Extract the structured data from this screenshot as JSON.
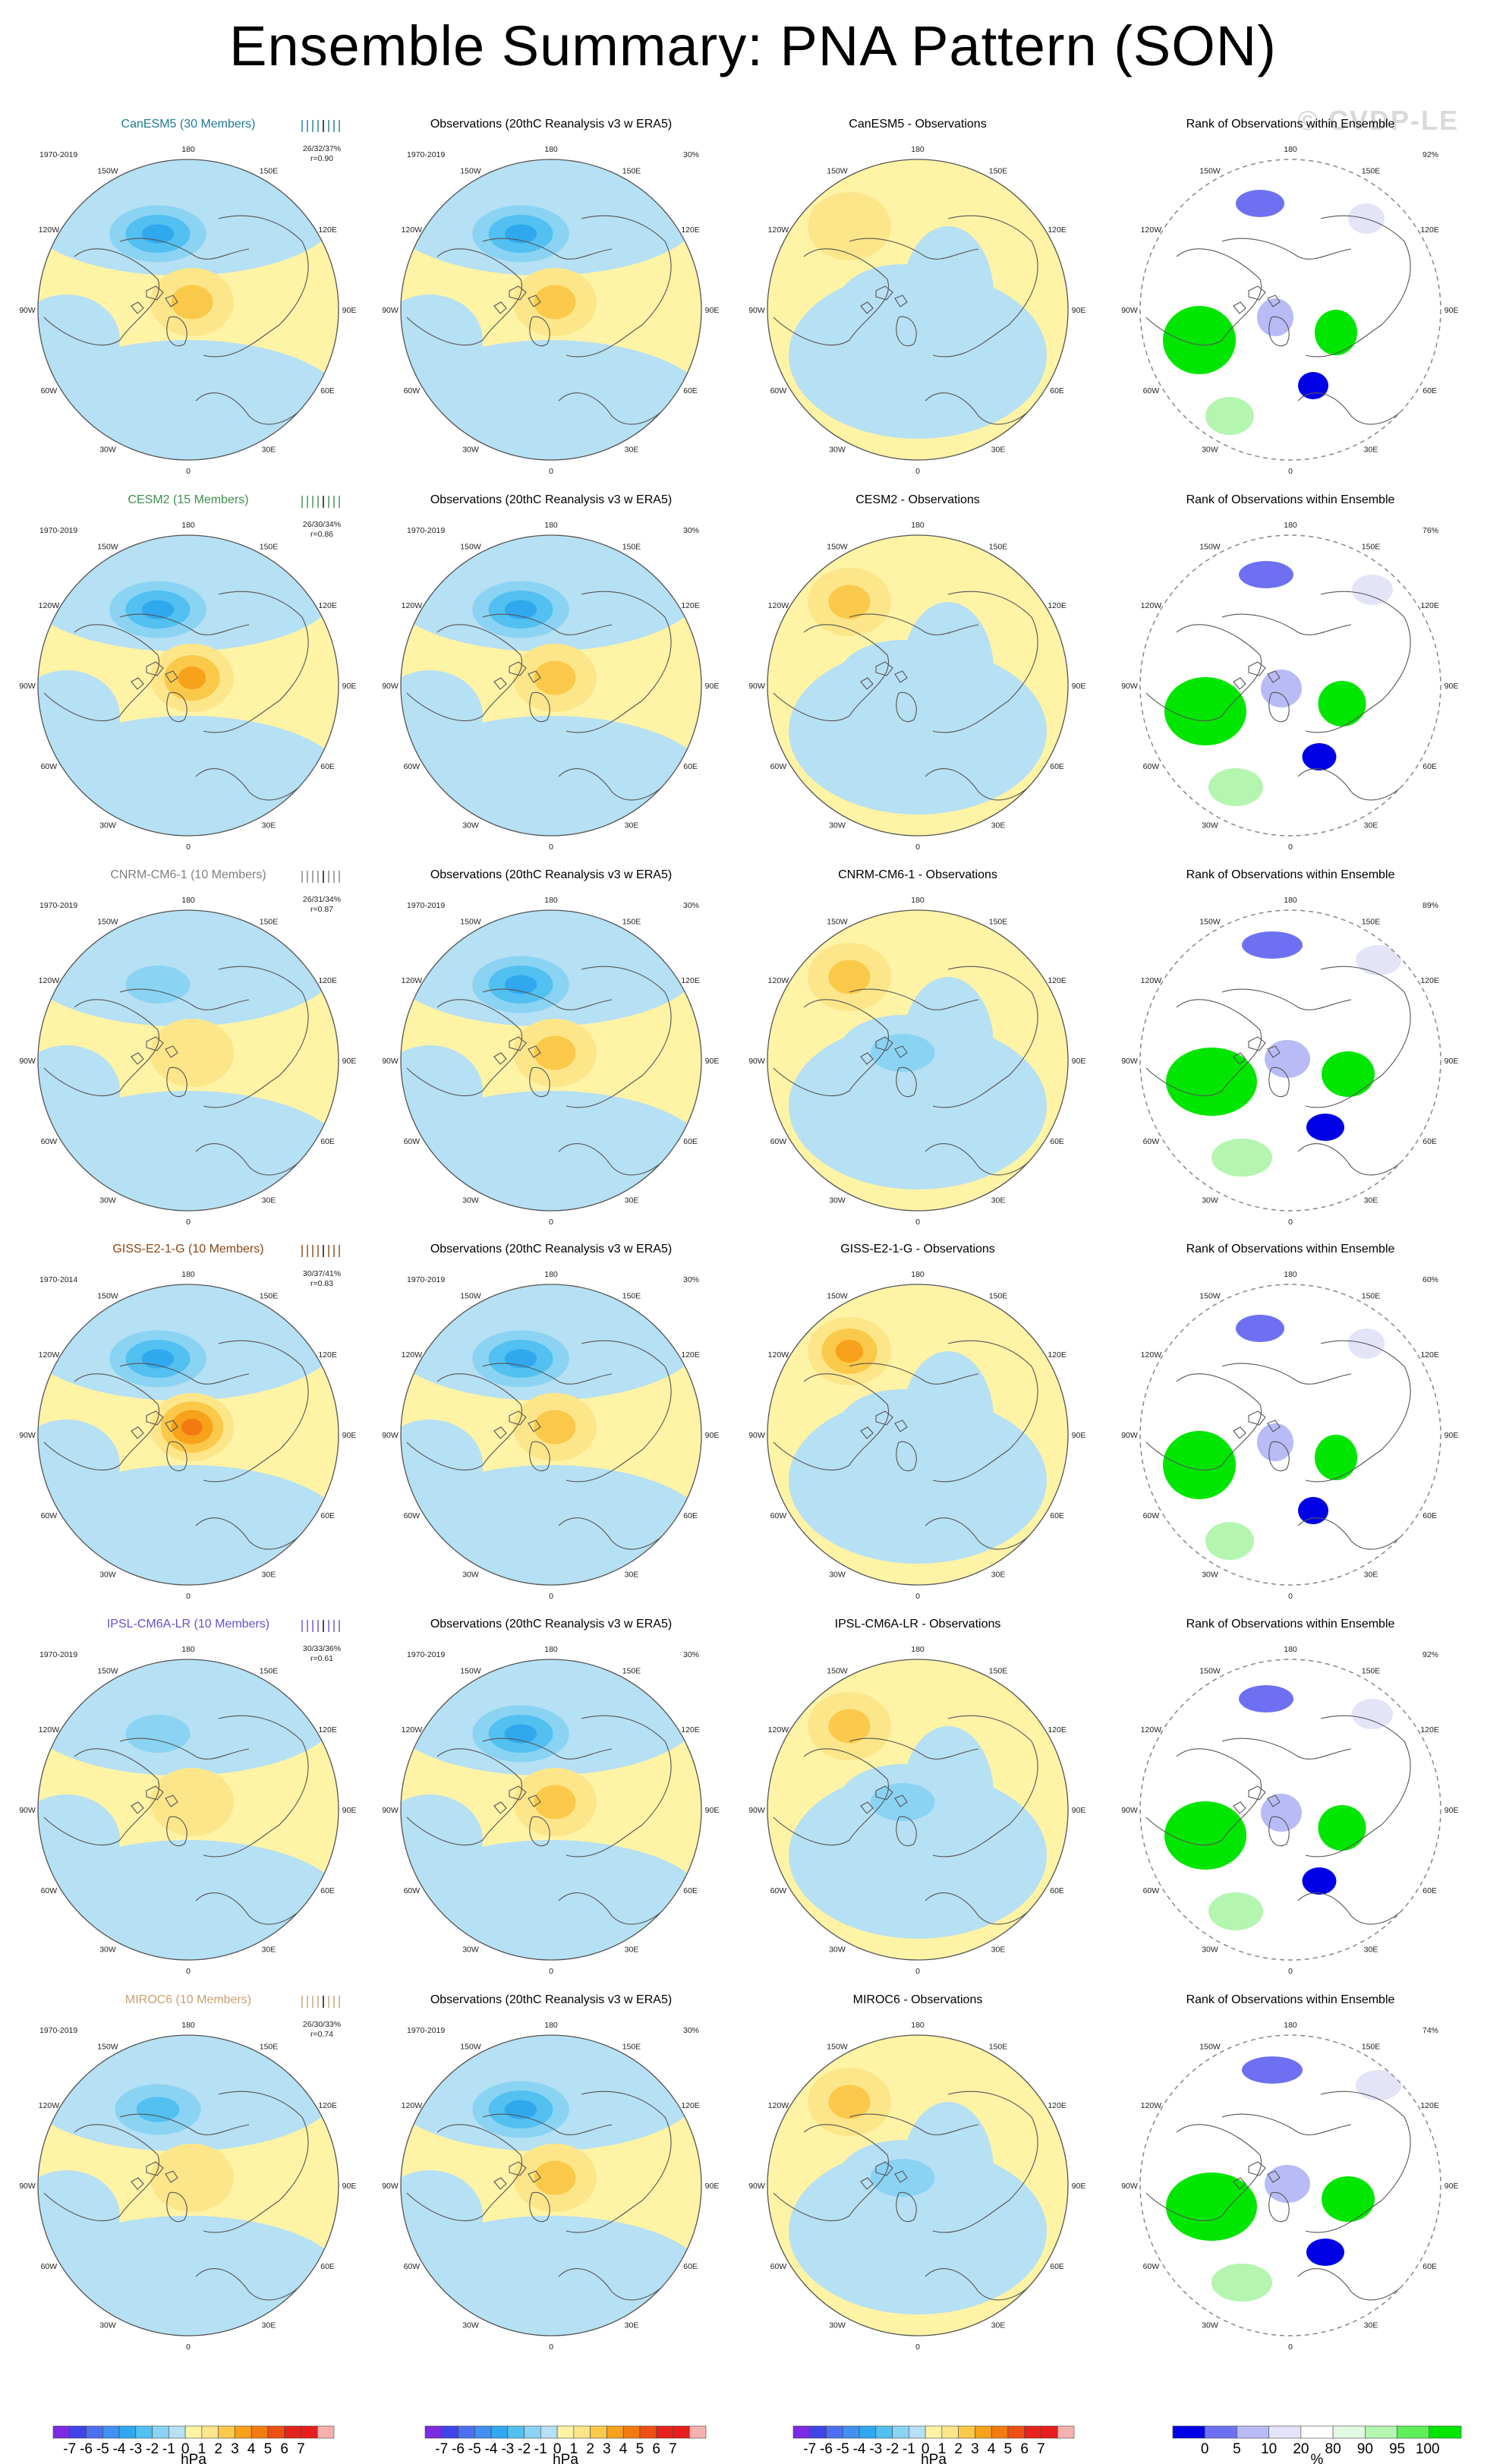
{
  "title": "Ensemble Summary: PNA Pattern (SON)",
  "watermark": "© CVDP-LE",
  "chart_data": {
    "type": "heatmap",
    "projection": "north polar stereographic",
    "columns": [
      "ensemble mean",
      "observations",
      "difference",
      "rank"
    ],
    "rows": [
      {
        "model": "CanESM5",
        "members": 30,
        "title": "CanESM5 (30 Members)",
        "title_color": "#1f7a93",
        "period": "1970-2019",
        "stats": "26/32/37%",
        "r": "r=0.90",
        "obs_title": "Observations (20thC Reanalysis v3 w ERA5)",
        "obs_period": "1970-2019",
        "obs_pct": "30%",
        "diff_title": "CanESM5 - Observations",
        "rank_title": "Rank of Observations within Ensemble",
        "rank_pct": "92%"
      },
      {
        "model": "CESM2",
        "members": 15,
        "title": "CESM2 (15 Members)",
        "title_color": "#3f8f4c",
        "period": "1970-2019",
        "stats": "26/30/34%",
        "r": "r=0.86",
        "obs_title": "Observations (20thC Reanalysis v3 w ERA5)",
        "obs_period": "1970-2019",
        "obs_pct": "30%",
        "diff_title": "CESM2 - Observations",
        "rank_title": "Rank of Observations within Ensemble",
        "rank_pct": "76%"
      },
      {
        "model": "CNRM-CM6-1",
        "members": 10,
        "title": "CNRM-CM6-1 (10 Members)",
        "title_color": "#7f7f7f",
        "period": "1970-2019",
        "stats": "26/31/34%",
        "r": "r=0.87",
        "obs_title": "Observations (20thC Reanalysis v3 w ERA5)",
        "obs_period": "1970-2019",
        "obs_pct": "30%",
        "diff_title": "CNRM-CM6-1 - Observations",
        "rank_title": "Rank of Observations within Ensemble",
        "rank_pct": "89%"
      },
      {
        "model": "GISS-E2-1-G",
        "members": 10,
        "title": "GISS-E2-1-G (10 Members)",
        "title_color": "#8b4513",
        "period": "1970-2014",
        "stats": "30/37/41%",
        "r": "r=0.83",
        "obs_title": "Observations (20thC Reanalysis v3 w ERA5)",
        "obs_period": "1970-2019",
        "obs_pct": "30%",
        "diff_title": "GISS-E2-1-G - Observations",
        "rank_title": "Rank of Observations within Ensemble",
        "rank_pct": "60%"
      },
      {
        "model": "IPSL-CM6A-LR",
        "members": 10,
        "title": "IPSL-CM6A-LR (10 Members)",
        "title_color": "#6a4fc9",
        "period": "1970-2019",
        "stats": "30/33/36%",
        "r": "r=0.61",
        "obs_title": "Observations (20thC Reanalysis v3 w ERA5)",
        "obs_period": "1970-2019",
        "obs_pct": "30%",
        "diff_title": "IPSL-CM6A-LR - Observations",
        "rank_title": "Rank of Observations within Ensemble",
        "rank_pct": "92%"
      },
      {
        "model": "MIROC6",
        "members": 10,
        "title": "MIROC6 (10 Members)",
        "title_color": "#c8a070",
        "period": "1970-2019",
        "stats": "26/30/33%",
        "r": "r=0.74",
        "obs_title": "Observations (20thC Reanalysis v3 w ERA5)",
        "obs_period": "1970-2019",
        "obs_pct": "30%",
        "diff_title": "MIROC6 - Observations",
        "rank_title": "Rank of Observations within Ensemble",
        "rank_pct": "74%"
      }
    ],
    "longitude_labels": [
      "180",
      "150E",
      "120E",
      "90E",
      "60E",
      "30E",
      "0",
      "30W",
      "60W",
      "90W",
      "120W",
      "150W"
    ],
    "pattern_amplitude_hpa": [
      {
        "model": "CanESM5",
        "model_low": -4,
        "model_high": 2,
        "obs_low": -4,
        "obs_high": 2,
        "diff_high": 1,
        "diff_low": -1
      },
      {
        "model": "CESM2",
        "model_low": -4,
        "model_high": 3,
        "obs_low": -4,
        "obs_high": 2,
        "diff_high": 2,
        "diff_low": -1
      },
      {
        "model": "CNRM-CM6-1",
        "model_low": -2,
        "model_high": 1,
        "obs_low": -4,
        "obs_high": 2,
        "diff_high": 2,
        "diff_low": -2
      },
      {
        "model": "GISS-E2-1-G",
        "model_low": -4,
        "model_high": 4,
        "obs_low": -4,
        "obs_high": 2,
        "diff_high": 3,
        "diff_low": -1
      },
      {
        "model": "IPSL-CM6A-LR",
        "model_low": -2,
        "model_high": 1,
        "obs_low": -4,
        "obs_high": 2,
        "diff_high": 2,
        "diff_low": -2
      },
      {
        "model": "MIROC6",
        "model_low": -3,
        "model_high": 1,
        "obs_low": -4,
        "obs_high": 2,
        "diff_high": 2,
        "diff_low": -2
      }
    ],
    "colorbar_hpa": {
      "ticks": [
        "-7",
        "-6",
        "-5",
        "-4",
        "-3",
        "-2",
        "-1",
        "0",
        "1",
        "2",
        "3",
        "4",
        "5",
        "6",
        "7"
      ],
      "unit": "hPa",
      "colors": [
        "#7b2be2",
        "#3f44e6",
        "#4c6ef0",
        "#3f90f0",
        "#2fa8ee",
        "#52c0f0",
        "#8ad3f3",
        "#b6e0f3",
        "#fff3a6",
        "#fde68a",
        "#fbc94a",
        "#f7a21a",
        "#f27a10",
        "#ee4f12",
        "#e6221c",
        "#e81d1d",
        "#f7b0b0"
      ]
    },
    "colorbar_rank": {
      "ticks": [
        "0",
        "5",
        "10",
        "20",
        "80",
        "90",
        "95",
        "100"
      ],
      "unit": "%",
      "colors": [
        "#0000e6",
        "#6e70f2",
        "#b8bbf5",
        "#e3e4f8",
        "#ffffff",
        "#e2f9e2",
        "#b4f5b0",
        "#5fef58",
        "#00e600"
      ]
    }
  }
}
